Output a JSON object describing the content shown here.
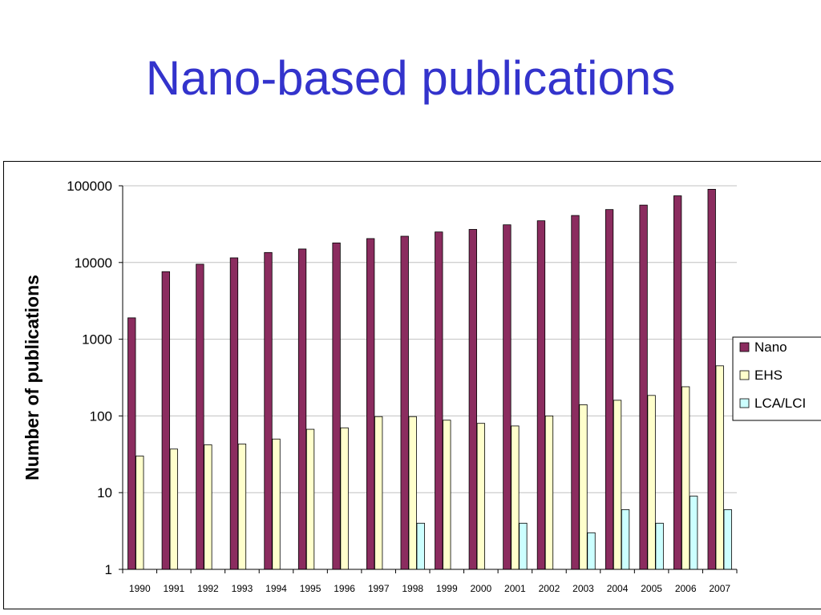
{
  "slide": {
    "title": "Nano-based publications"
  },
  "chart_data": {
    "type": "bar",
    "title": "",
    "xlabel": "",
    "ylabel": "Number of publications",
    "yscale": "log",
    "ylim": [
      1,
      100000
    ],
    "yticks": [
      "100000",
      "10000",
      "1000",
      "100",
      "10",
      "1"
    ],
    "grid": "horizontal",
    "legend_position": "right",
    "categories": [
      "1990",
      "1991",
      "1992",
      "1993",
      "1994",
      "1995",
      "1996",
      "1997",
      "1998",
      "1999",
      "2000",
      "2001",
      "2002",
      "2003",
      "2004",
      "2005",
      "2006",
      "2007"
    ],
    "series": [
      {
        "name": "Nano",
        "color": "#8b2c5f",
        "values": [
          1900,
          7600,
          9500,
          11500,
          13500,
          15000,
          18000,
          20500,
          22000,
          25000,
          27000,
          31000,
          35000,
          41000,
          49000,
          56000,
          74000,
          90000
        ]
      },
      {
        "name": "EHS",
        "color": "#ffffcc",
        "values": [
          30,
          37,
          42,
          43,
          50,
          67,
          70,
          98,
          98,
          88,
          80,
          74,
          100,
          140,
          160,
          185,
          240,
          450
        ]
      },
      {
        "name": "LCA/LCI",
        "color": "#ccffff",
        "values": [
          null,
          null,
          null,
          null,
          null,
          null,
          null,
          null,
          4,
          null,
          null,
          4,
          null,
          3,
          6,
          4,
          9,
          6
        ]
      }
    ]
  }
}
